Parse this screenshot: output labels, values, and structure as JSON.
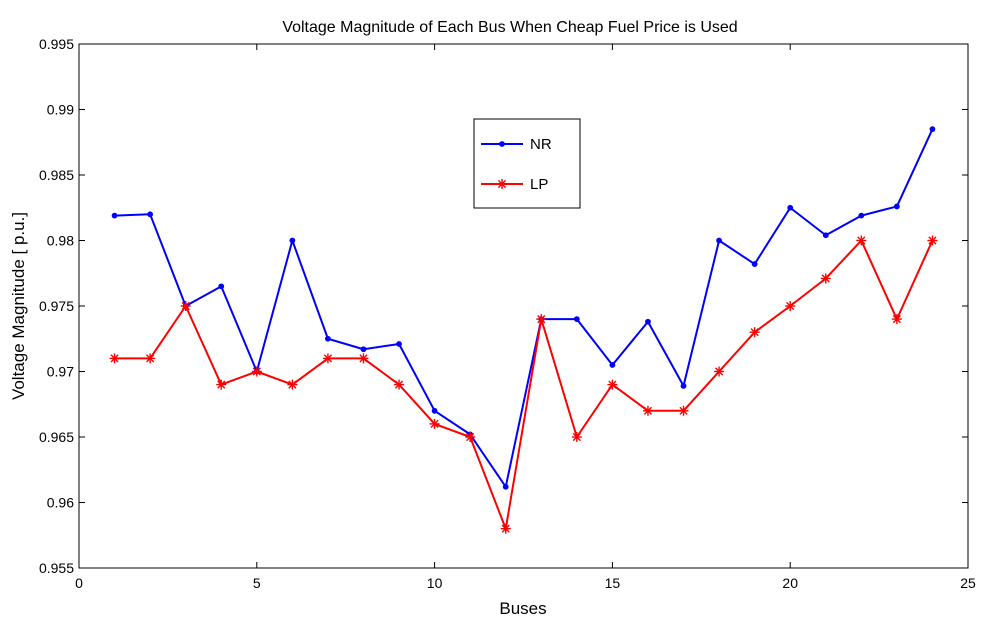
{
  "chart_data": {
    "type": "line",
    "title": "Voltage Magnitude of Each Bus When Cheap Fuel Price is Used",
    "xlabel": "Buses",
    "ylabel": "Voltage Magnitude [ p.u.]",
    "xlim": [
      0,
      25
    ],
    "ylim": [
      0.955,
      0.995
    ],
    "xticks": [
      0,
      5,
      10,
      15,
      20,
      25
    ],
    "xtick_labels": [
      "0",
      "5",
      "10",
      "15",
      "20",
      "25"
    ],
    "yticks": [
      0.955,
      0.96,
      0.965,
      0.97,
      0.975,
      0.98,
      0.985,
      0.99,
      0.995
    ],
    "ytick_labels": [
      "0.955",
      "0.96",
      "0.965",
      "0.97",
      "0.975",
      "0.98",
      "0.985",
      "0.99",
      "0.995"
    ],
    "grid": false,
    "legend_position": "top-center",
    "x": [
      1,
      2,
      3,
      4,
      5,
      6,
      7,
      8,
      9,
      10,
      11,
      12,
      13,
      14,
      15,
      16,
      17,
      18,
      19,
      20,
      21,
      22,
      23,
      24
    ],
    "series": [
      {
        "name": "NR",
        "color": "#0000ff",
        "marker": "dot",
        "values": [
          0.9819,
          0.982,
          0.975,
          0.9765,
          0.97,
          0.98,
          0.9725,
          0.9717,
          0.9721,
          0.967,
          0.9652,
          0.9612,
          0.974,
          0.974,
          0.9705,
          0.9738,
          0.9689,
          0.98,
          0.9782,
          0.9825,
          0.9804,
          0.9819,
          0.9826,
          0.9885
        ]
      },
      {
        "name": "LP",
        "color": "#ff0000",
        "marker": "star",
        "values": [
          0.971,
          0.971,
          0.975,
          0.969,
          0.97,
          0.969,
          0.971,
          0.971,
          0.969,
          0.966,
          0.965,
          0.958,
          0.974,
          0.965,
          0.969,
          0.967,
          0.967,
          0.97,
          0.973,
          0.975,
          0.9771,
          0.98,
          0.974,
          0.98
        ]
      }
    ]
  }
}
